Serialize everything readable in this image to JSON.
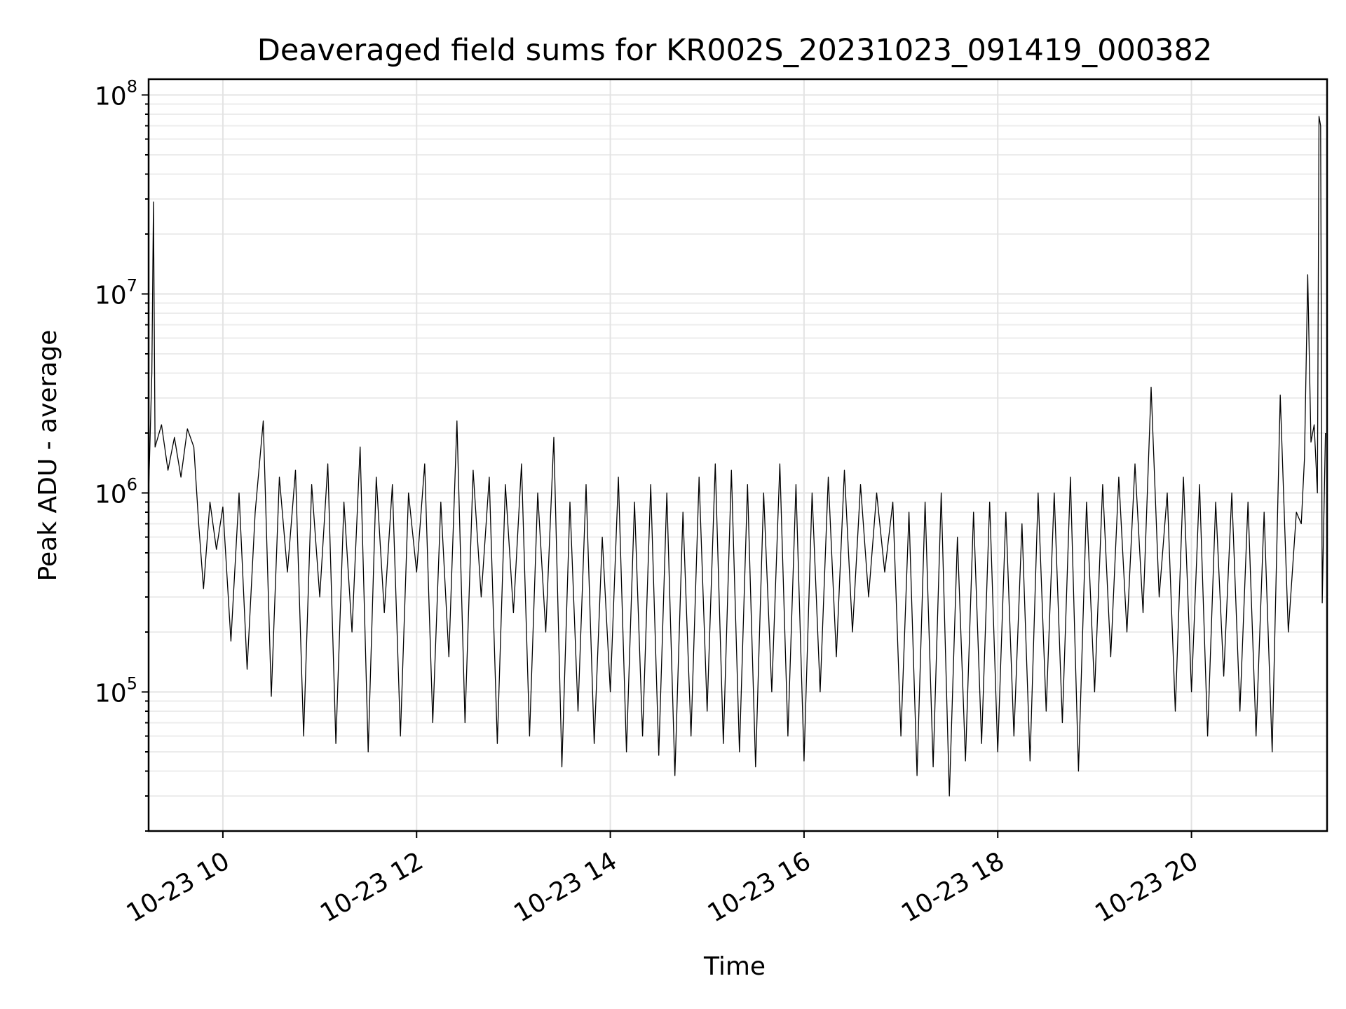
{
  "chart_data": {
    "type": "line",
    "title": "Deaveraged field sums for KR002S_20231023_091419_000382",
    "xlabel": "Time",
    "ylabel": "Peak ADU - average",
    "y_scale": "log",
    "ylim": [
      20000,
      120000000
    ],
    "xlim": [
      "2023-10-23T09:14",
      "2023-10-23T21:24"
    ],
    "grid": true,
    "legend": "none",
    "line_color": "#000000",
    "x_ticks": [
      {
        "t": "2023-10-23T10:00",
        "label": "10-23 10"
      },
      {
        "t": "2023-10-23T12:00",
        "label": "10-23 12"
      },
      {
        "t": "2023-10-23T14:00",
        "label": "10-23 14"
      },
      {
        "t": "2023-10-23T16:00",
        "label": "10-23 16"
      },
      {
        "t": "2023-10-23T18:00",
        "label": "10-23 18"
      },
      {
        "t": "2023-10-23T20:00",
        "label": "10-23 20"
      }
    ],
    "y_ticks": [
      {
        "value": 100000,
        "base": "10",
        "exp": "5"
      },
      {
        "value": 1000000,
        "base": "10",
        "exp": "6"
      },
      {
        "value": 10000000,
        "base": "10",
        "exp": "7"
      },
      {
        "value": 100000000,
        "base": "10",
        "exp": "8"
      }
    ],
    "series": [
      {
        "points": [
          [
            "2023-10-23T09:14",
            1000000
          ],
          [
            "2023-10-23T09:16",
            4000000
          ],
          [
            "2023-10-23T09:17",
            29000000
          ],
          [
            "2023-10-23T09:18",
            1700000
          ],
          [
            "2023-10-23T09:22",
            2200000
          ],
          [
            "2023-10-23T09:26",
            1300000
          ],
          [
            "2023-10-23T09:30",
            1900000
          ],
          [
            "2023-10-23T09:34",
            1200000
          ],
          [
            "2023-10-23T09:38",
            2100000
          ],
          [
            "2023-10-23T09:42",
            1700000
          ],
          [
            "2023-10-23T09:45",
            700000
          ],
          [
            "2023-10-23T09:48",
            330000
          ],
          [
            "2023-10-23T09:52",
            900000
          ],
          [
            "2023-10-23T09:56",
            520000
          ],
          [
            "2023-10-23T10:00",
            850000
          ],
          [
            "2023-10-23T10:05",
            180000
          ],
          [
            "2023-10-23T10:10",
            1000000
          ],
          [
            "2023-10-23T10:15",
            130000
          ],
          [
            "2023-10-23T10:20",
            800000
          ],
          [
            "2023-10-23T10:25",
            2300000
          ],
          [
            "2023-10-23T10:30",
            95000
          ],
          [
            "2023-10-23T10:35",
            1200000
          ],
          [
            "2023-10-23T10:40",
            400000
          ],
          [
            "2023-10-23T10:45",
            1300000
          ],
          [
            "2023-10-23T10:50",
            60000
          ],
          [
            "2023-10-23T10:55",
            1100000
          ],
          [
            "2023-10-23T11:00",
            300000
          ],
          [
            "2023-10-23T11:05",
            1400000
          ],
          [
            "2023-10-23T11:10",
            55000
          ],
          [
            "2023-10-23T11:15",
            900000
          ],
          [
            "2023-10-23T11:20",
            200000
          ],
          [
            "2023-10-23T11:25",
            1700000
          ],
          [
            "2023-10-23T11:30",
            50000
          ],
          [
            "2023-10-23T11:35",
            1200000
          ],
          [
            "2023-10-23T11:40",
            250000
          ],
          [
            "2023-10-23T11:45",
            1100000
          ],
          [
            "2023-10-23T11:50",
            60000
          ],
          [
            "2023-10-23T11:55",
            1000000
          ],
          [
            "2023-10-23T12:00",
            400000
          ],
          [
            "2023-10-23T12:05",
            1400000
          ],
          [
            "2023-10-23T12:10",
            70000
          ],
          [
            "2023-10-23T12:15",
            900000
          ],
          [
            "2023-10-23T12:20",
            150000
          ],
          [
            "2023-10-23T12:25",
            2300000
          ],
          [
            "2023-10-23T12:30",
            70000
          ],
          [
            "2023-10-23T12:35",
            1300000
          ],
          [
            "2023-10-23T12:40",
            300000
          ],
          [
            "2023-10-23T12:45",
            1200000
          ],
          [
            "2023-10-23T12:50",
            55000
          ],
          [
            "2023-10-23T12:55",
            1100000
          ],
          [
            "2023-10-23T13:00",
            250000
          ],
          [
            "2023-10-23T13:05",
            1400000
          ],
          [
            "2023-10-23T13:10",
            60000
          ],
          [
            "2023-10-23T13:15",
            1000000
          ],
          [
            "2023-10-23T13:20",
            200000
          ],
          [
            "2023-10-23T13:25",
            1900000
          ],
          [
            "2023-10-23T13:30",
            42000
          ],
          [
            "2023-10-23T13:35",
            900000
          ],
          [
            "2023-10-23T13:40",
            80000
          ],
          [
            "2023-10-23T13:45",
            1100000
          ],
          [
            "2023-10-23T13:50",
            55000
          ],
          [
            "2023-10-23T13:55",
            600000
          ],
          [
            "2023-10-23T14:00",
            100000
          ],
          [
            "2023-10-23T14:05",
            1200000
          ],
          [
            "2023-10-23T14:10",
            50000
          ],
          [
            "2023-10-23T14:15",
            900000
          ],
          [
            "2023-10-23T14:20",
            60000
          ],
          [
            "2023-10-23T14:25",
            1100000
          ],
          [
            "2023-10-23T14:30",
            48000
          ],
          [
            "2023-10-23T14:35",
            1000000
          ],
          [
            "2023-10-23T14:40",
            38000
          ],
          [
            "2023-10-23T14:45",
            800000
          ],
          [
            "2023-10-23T14:50",
            60000
          ],
          [
            "2023-10-23T14:55",
            1200000
          ],
          [
            "2023-10-23T15:00",
            80000
          ],
          [
            "2023-10-23T15:05",
            1400000
          ],
          [
            "2023-10-23T15:10",
            55000
          ],
          [
            "2023-10-23T15:15",
            1300000
          ],
          [
            "2023-10-23T15:20",
            50000
          ],
          [
            "2023-10-23T15:25",
            1100000
          ],
          [
            "2023-10-23T15:30",
            42000
          ],
          [
            "2023-10-23T15:35",
            1000000
          ],
          [
            "2023-10-23T15:40",
            100000
          ],
          [
            "2023-10-23T15:45",
            1400000
          ],
          [
            "2023-10-23T15:50",
            60000
          ],
          [
            "2023-10-23T15:55",
            1100000
          ],
          [
            "2023-10-23T16:00",
            45000
          ],
          [
            "2023-10-23T16:05",
            1000000
          ],
          [
            "2023-10-23T16:10",
            100000
          ],
          [
            "2023-10-23T16:15",
            1200000
          ],
          [
            "2023-10-23T16:20",
            150000
          ],
          [
            "2023-10-23T16:25",
            1300000
          ],
          [
            "2023-10-23T16:30",
            200000
          ],
          [
            "2023-10-23T16:35",
            1100000
          ],
          [
            "2023-10-23T16:40",
            300000
          ],
          [
            "2023-10-23T16:45",
            1000000
          ],
          [
            "2023-10-23T16:50",
            400000
          ],
          [
            "2023-10-23T16:55",
            900000
          ],
          [
            "2023-10-23T17:00",
            60000
          ],
          [
            "2023-10-23T17:05",
            800000
          ],
          [
            "2023-10-23T17:10",
            38000
          ],
          [
            "2023-10-23T17:15",
            900000
          ],
          [
            "2023-10-23T17:20",
            42000
          ],
          [
            "2023-10-23T17:25",
            1000000
          ],
          [
            "2023-10-23T17:30",
            30000
          ],
          [
            "2023-10-23T17:35",
            600000
          ],
          [
            "2023-10-23T17:40",
            45000
          ],
          [
            "2023-10-23T17:45",
            800000
          ],
          [
            "2023-10-23T17:50",
            55000
          ],
          [
            "2023-10-23T17:55",
            900000
          ],
          [
            "2023-10-23T18:00",
            50000
          ],
          [
            "2023-10-23T18:05",
            800000
          ],
          [
            "2023-10-23T18:10",
            60000
          ],
          [
            "2023-10-23T18:15",
            700000
          ],
          [
            "2023-10-23T18:20",
            45000
          ],
          [
            "2023-10-23T18:25",
            1000000
          ],
          [
            "2023-10-23T18:30",
            80000
          ],
          [
            "2023-10-23T18:35",
            1000000
          ],
          [
            "2023-10-23T18:40",
            70000
          ],
          [
            "2023-10-23T18:45",
            1200000
          ],
          [
            "2023-10-23T18:50",
            40000
          ],
          [
            "2023-10-23T18:55",
            900000
          ],
          [
            "2023-10-23T19:00",
            100000
          ],
          [
            "2023-10-23T19:05",
            1100000
          ],
          [
            "2023-10-23T19:10",
            150000
          ],
          [
            "2023-10-23T19:15",
            1200000
          ],
          [
            "2023-10-23T19:20",
            200000
          ],
          [
            "2023-10-23T19:25",
            1400000
          ],
          [
            "2023-10-23T19:30",
            250000
          ],
          [
            "2023-10-23T19:35",
            3400000
          ],
          [
            "2023-10-23T19:40",
            300000
          ],
          [
            "2023-10-23T19:45",
            1000000
          ],
          [
            "2023-10-23T19:50",
            80000
          ],
          [
            "2023-10-23T19:55",
            1200000
          ],
          [
            "2023-10-23T20:00",
            100000
          ],
          [
            "2023-10-23T20:05",
            1100000
          ],
          [
            "2023-10-23T20:10",
            60000
          ],
          [
            "2023-10-23T20:15",
            900000
          ],
          [
            "2023-10-23T20:20",
            120000
          ],
          [
            "2023-10-23T20:25",
            1000000
          ],
          [
            "2023-10-23T20:30",
            80000
          ],
          [
            "2023-10-23T20:35",
            900000
          ],
          [
            "2023-10-23T20:40",
            60000
          ],
          [
            "2023-10-23T20:45",
            800000
          ],
          [
            "2023-10-23T20:50",
            50000
          ],
          [
            "2023-10-23T20:55",
            3100000
          ],
          [
            "2023-10-23T21:00",
            200000
          ],
          [
            "2023-10-23T21:05",
            800000
          ],
          [
            "2023-10-23T21:08",
            700000
          ],
          [
            "2023-10-23T21:10",
            1500000
          ],
          [
            "2023-10-23T21:12",
            12500000
          ],
          [
            "2023-10-23T21:14",
            1800000
          ],
          [
            "2023-10-23T21:16",
            2200000
          ],
          [
            "2023-10-23T21:18",
            1000000
          ],
          [
            "2023-10-23T21:19",
            78000000
          ],
          [
            "2023-10-23T21:20",
            70000000
          ],
          [
            "2023-10-23T21:21",
            280000
          ],
          [
            "2023-10-23T21:23",
            2000000
          ]
        ]
      }
    ]
  }
}
